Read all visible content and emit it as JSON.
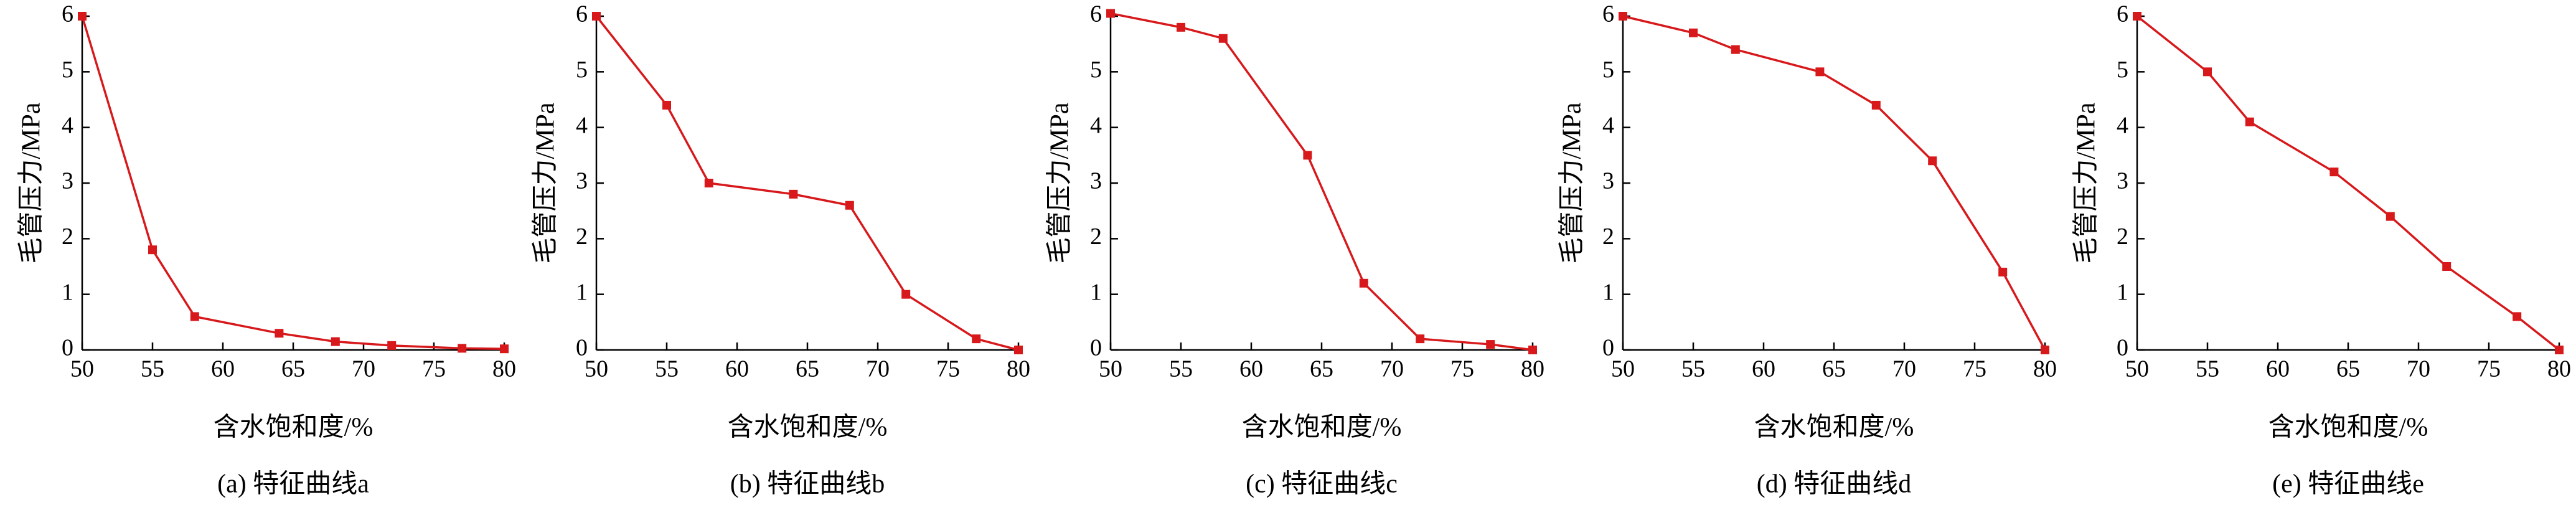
{
  "chart_data": [
    {
      "type": "line",
      "title": "(a) 特征曲线a",
      "x_label": "含水饱和度/%",
      "y_label": "毛管压力/MPa",
      "color": "#d7191c",
      "x": [
        50,
        55,
        58,
        64,
        68,
        72,
        77,
        80
      ],
      "values": [
        6,
        1.8,
        0.6,
        0.3,
        0.15,
        0.08,
        0.03,
        0.02
      ],
      "xlim": [
        50,
        80
      ],
      "ylim": [
        0,
        6
      ],
      "xticks": [
        50,
        55,
        60,
        65,
        70,
        75,
        80
      ],
      "yticks": [
        0,
        1,
        2,
        3,
        4,
        5,
        6
      ]
    },
    {
      "type": "line",
      "title": "(b) 特征曲线b",
      "x_label": "含水饱和度/%",
      "y_label": "毛管压力/MPa",
      "color": "#d7191c",
      "x": [
        50,
        55,
        58,
        64,
        68,
        72,
        77,
        80
      ],
      "values": [
        6,
        4.4,
        3.0,
        2.8,
        2.6,
        1.0,
        0.2,
        0
      ],
      "xlim": [
        50,
        80
      ],
      "ylim": [
        0,
        6
      ],
      "xticks": [
        50,
        55,
        60,
        65,
        70,
        75,
        80
      ],
      "yticks": [
        0,
        1,
        2,
        3,
        4,
        5,
        6
      ]
    },
    {
      "type": "line",
      "title": "(c) 特征曲线c",
      "x_label": "含水饱和度/%",
      "y_label": "毛管压力/MPa",
      "color": "#d7191c",
      "x": [
        50,
        55,
        58,
        64,
        68,
        72,
        77,
        80
      ],
      "values": [
        6.05,
        5.8,
        5.6,
        3.5,
        1.2,
        0.2,
        0.1,
        0
      ],
      "xlim": [
        50,
        80
      ],
      "ylim": [
        0,
        6
      ],
      "xticks": [
        50,
        55,
        60,
        65,
        70,
        75,
        80
      ],
      "yticks": [
        0,
        1,
        2,
        3,
        4,
        5,
        6
      ]
    },
    {
      "type": "line",
      "title": "(d) 特征曲线d",
      "x_label": "含水饱和度/%",
      "y_label": "毛管压力/MPa",
      "color": "#d7191c",
      "x": [
        50,
        55,
        58,
        64,
        68,
        72,
        77,
        80
      ],
      "values": [
        6,
        5.7,
        5.4,
        5.0,
        4.4,
        3.4,
        1.4,
        0
      ],
      "xlim": [
        50,
        80
      ],
      "ylim": [
        0,
        6
      ],
      "xticks": [
        50,
        55,
        60,
        65,
        70,
        75,
        80
      ],
      "yticks": [
        0,
        1,
        2,
        3,
        4,
        5,
        6
      ]
    },
    {
      "type": "line",
      "title": "(e) 特征曲线e",
      "x_label": "含水饱和度/%",
      "y_label": "毛管压力/MPa",
      "color": "#d7191c",
      "x": [
        50,
        55,
        58,
        64,
        68,
        72,
        77,
        80
      ],
      "values": [
        6,
        5.0,
        4.1,
        3.2,
        2.4,
        1.5,
        0.6,
        0
      ],
      "xlim": [
        50,
        80
      ],
      "ylim": [
        0,
        6
      ],
      "xticks": [
        50,
        55,
        60,
        65,
        70,
        75,
        80
      ],
      "yticks": [
        0,
        1,
        2,
        3,
        4,
        5,
        6
      ]
    }
  ]
}
